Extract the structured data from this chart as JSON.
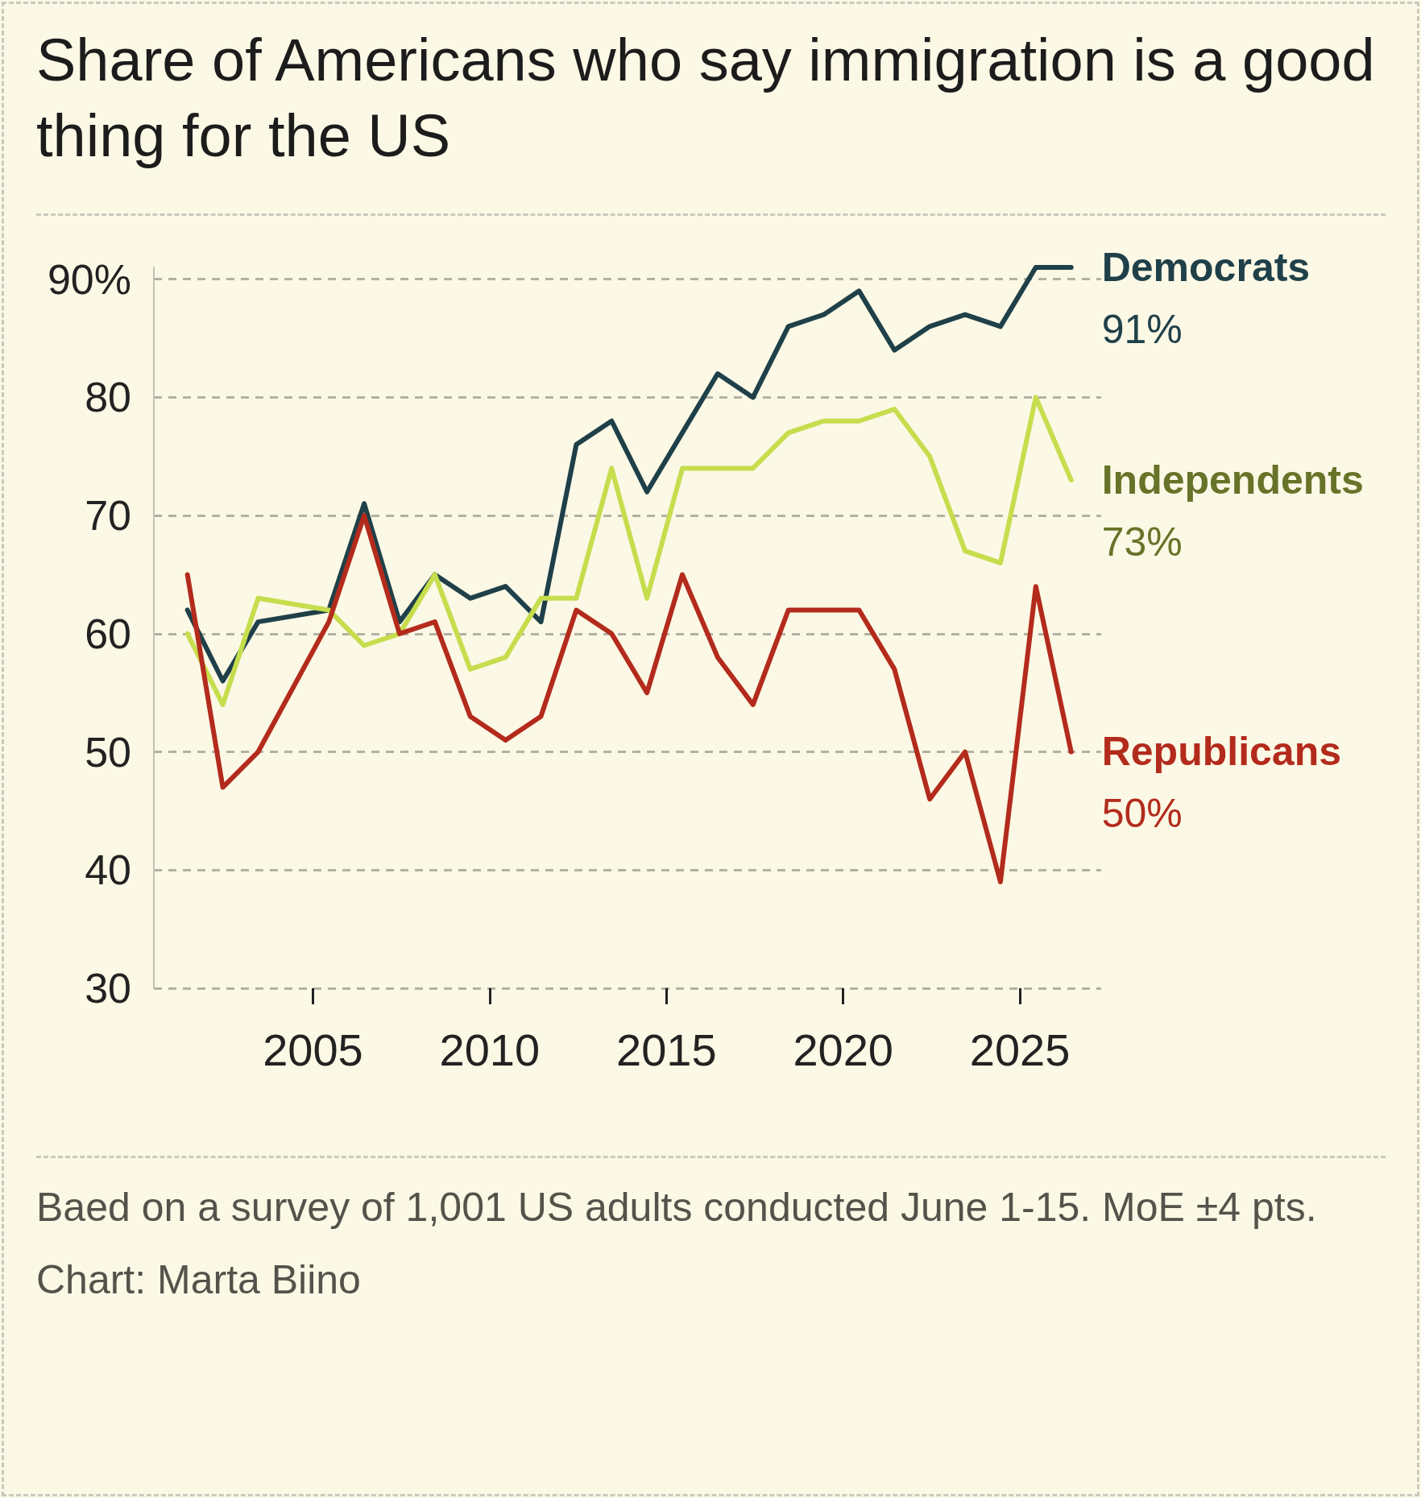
{
  "chart_data": {
    "type": "line",
    "title": "Share of Americans who say immigration is a good thing for the US",
    "annotations": [
      "Baed on a survey of 1,001 US adults conducted June 1-15. MoE ±4 pts.",
      "Chart: Marta Biino"
    ],
    "x": [
      2001.45,
      2002.45,
      2003.45,
      2005.45,
      2006.45,
      2007.45,
      2008.45,
      2009.45,
      2010.45,
      2011.45,
      2012.45,
      2013.45,
      2014.45,
      2015.45,
      2016.45,
      2017.45,
      2018.45,
      2019.45,
      2020.45,
      2021.45,
      2022.45,
      2023.45,
      2024.45,
      2025.45,
      2026.45
    ],
    "xlim": [
      2000.5,
      2027.3
    ],
    "xticks": [
      2005,
      2010,
      2015,
      2020,
      2025
    ],
    "ylim": [
      30,
      91
    ],
    "yticks": [
      30,
      40,
      50,
      60,
      70,
      80,
      {
        "value": 90,
        "label": "90%"
      }
    ],
    "grid": "y",
    "series": [
      {
        "name": "Democrats",
        "color": "#1f4049",
        "values": [
          62,
          56,
          61,
          62,
          71,
          61,
          65,
          63,
          64,
          61,
          76,
          78,
          72,
          77,
          82,
          80,
          86,
          87,
          89,
          84,
          86,
          87,
          86,
          91,
          91
        ],
        "value_labels": [
          null,
          null,
          null,
          null,
          null,
          null,
          null,
          null,
          null,
          null,
          null,
          null,
          null,
          null,
          null,
          null,
          null,
          null,
          null,
          null,
          null,
          null,
          null,
          null,
          "91%"
        ]
      },
      {
        "name": "Independents",
        "color": "#c6dd4d",
        "values": [
          60,
          54,
          63,
          62,
          59,
          60,
          65,
          57,
          58,
          63,
          63,
          74,
          63,
          74,
          74,
          74,
          77,
          78,
          78,
          79,
          75,
          67,
          66,
          80,
          73
        ],
        "value_labels": [
          null,
          null,
          null,
          null,
          null,
          null,
          null,
          null,
          null,
          null,
          null,
          null,
          null,
          null,
          null,
          null,
          null,
          null,
          null,
          null,
          null,
          null,
          null,
          null,
          "73%"
        ]
      },
      {
        "name": "Republicans",
        "color": "#b32b1c",
        "values": [
          65,
          47,
          50,
          61,
          70,
          60,
          61,
          53,
          51,
          53,
          62,
          60,
          55,
          65,
          58,
          54,
          62,
          62,
          62,
          57,
          46,
          50,
          39,
          64,
          50
        ],
        "value_labels": [
          null,
          null,
          null,
          null,
          null,
          null,
          null,
          null,
          null,
          null,
          null,
          null,
          null,
          null,
          null,
          null,
          null,
          null,
          null,
          null,
          null,
          null,
          null,
          null,
          "50%"
        ]
      }
    ]
  }
}
